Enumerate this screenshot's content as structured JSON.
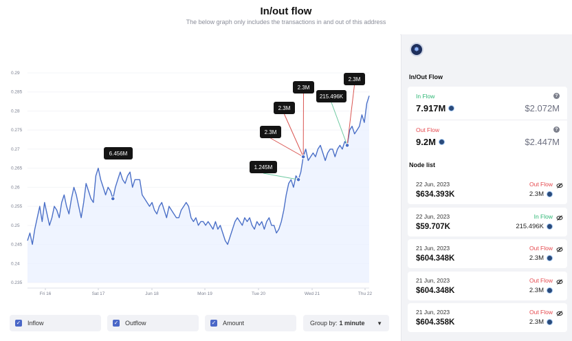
{
  "header": {
    "title": "In/out flow",
    "subtitle": "The below graph only includes the transactions in and out of this address"
  },
  "chart_data": {
    "type": "area",
    "ylim": [
      0.235,
      0.29
    ],
    "y_ticks": [
      "0.29",
      "0.285",
      "0.28",
      "0.275",
      "0.27",
      "0.265",
      "0.26",
      "0.255",
      "0.25",
      "0.245",
      "0.24",
      "0.235"
    ],
    "x_ticks": [
      "Fri 16",
      "Sat 17",
      "Jun 18",
      "Mon 19",
      "Tue 20",
      "Wed 21",
      "Thu 22"
    ],
    "series": [
      {
        "values": [
          0.246,
          0.248,
          0.245,
          0.249,
          0.252,
          0.255,
          0.251,
          0.256,
          0.253,
          0.25,
          0.252,
          0.255,
          0.254,
          0.252,
          0.256,
          0.258,
          0.255,
          0.253,
          0.257,
          0.26,
          0.258,
          0.255,
          0.252,
          0.256,
          0.261,
          0.259,
          0.257,
          0.256,
          0.263,
          0.265,
          0.262,
          0.26,
          0.258,
          0.26,
          0.259,
          0.257,
          0.26,
          0.262,
          0.264,
          0.262,
          0.261,
          0.263,
          0.264,
          0.26,
          0.262,
          0.262,
          0.262,
          0.258,
          0.257,
          0.256,
          0.255,
          0.256,
          0.254,
          0.253,
          0.255,
          0.256,
          0.254,
          0.252,
          0.255,
          0.254,
          0.253,
          0.252,
          0.252,
          0.254,
          0.255,
          0.256,
          0.255,
          0.252,
          0.251,
          0.252,
          0.25,
          0.251,
          0.251,
          0.25,
          0.251,
          0.25,
          0.249,
          0.251,
          0.249,
          0.25,
          0.248,
          0.246,
          0.245,
          0.247,
          0.249,
          0.251,
          0.252,
          0.251,
          0.25,
          0.252,
          0.251,
          0.252,
          0.25,
          0.249,
          0.251,
          0.25,
          0.251,
          0.249,
          0.251,
          0.252,
          0.25,
          0.25,
          0.248,
          0.249,
          0.251,
          0.254,
          0.258,
          0.261,
          0.262,
          0.26,
          0.263,
          0.262,
          0.264,
          0.268,
          0.27,
          0.267,
          0.268,
          0.269,
          0.268,
          0.27,
          0.271,
          0.269,
          0.267,
          0.269,
          0.27,
          0.27,
          0.268,
          0.27,
          0.271,
          0.27,
          0.272,
          0.271,
          0.275,
          0.276,
          0.274,
          0.275,
          0.276,
          0.279,
          0.277,
          0.282,
          0.284
        ]
      }
    ]
  },
  "callouts": [
    {
      "label": "6.456M"
    },
    {
      "label": "1.245M"
    },
    {
      "label": "2.3M"
    },
    {
      "label": "2.3M"
    },
    {
      "label": "2.3M"
    },
    {
      "label": "215.496K"
    },
    {
      "label": "2.3M"
    }
  ],
  "controls": {
    "inflow": "Inflow",
    "outflow": "Outflow",
    "amount": "Amount",
    "groupby_label": "Group by:",
    "groupby_value": "1 minute",
    "check_glyph": "✓"
  },
  "sidebar": {
    "inout_title": "In/Out Flow",
    "in_flow": {
      "label": "In Flow",
      "value": "7.917M",
      "usd": "$2.072M",
      "color": "#2bb673"
    },
    "out_flow": {
      "label": "Out Flow",
      "value": "9.2M",
      "usd": "$2.447M",
      "color": "#e5484d"
    },
    "help_glyph": "?",
    "node_list_title": "Node list",
    "nodes": [
      {
        "date": "22 Jun, 2023",
        "value": "$634.393K",
        "direction": "Out Flow",
        "amount": "2.3M"
      },
      {
        "date": "22 Jun, 2023",
        "value": "$59.707K",
        "direction": "In Flow",
        "amount": "215.496K"
      },
      {
        "date": "21 Jun, 2023",
        "value": "$604.348K",
        "direction": "Out Flow",
        "amount": "2.3M"
      },
      {
        "date": "21 Jun, 2023",
        "value": "$604.348K",
        "direction": "Out Flow",
        "amount": "2.3M"
      },
      {
        "date": "21 Jun, 2023",
        "value": "$604.358K",
        "direction": "Out Flow",
        "amount": "2.3M"
      }
    ]
  },
  "colors": {
    "line": "#4a6fc7",
    "area": "#e8efff",
    "in_line": "#6cc8a0",
    "out_line": "#d9534f",
    "accent": "#4a67c7"
  },
  "icons": {
    "logo": "polkadot-star-icon",
    "token": "token-icon",
    "hide": "eye-off-icon",
    "help": "help-icon"
  }
}
